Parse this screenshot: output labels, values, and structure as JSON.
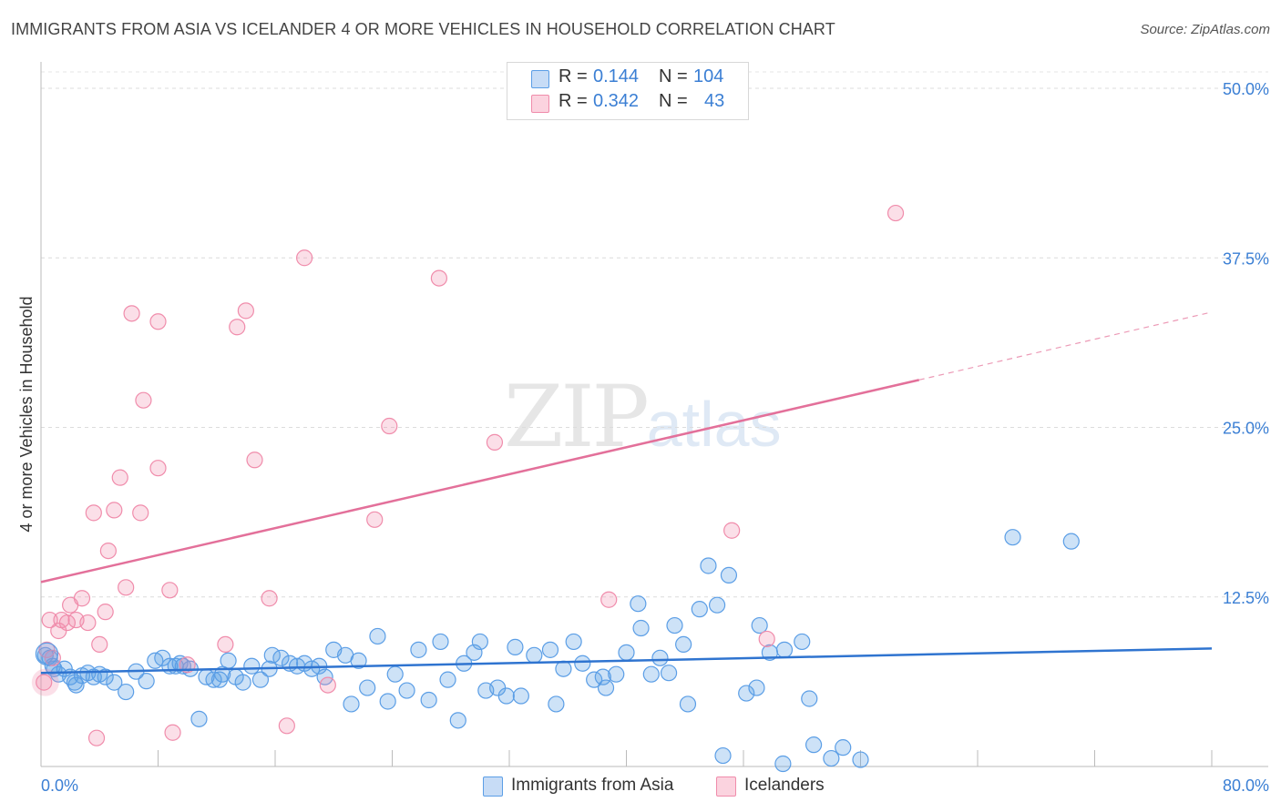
{
  "title": "IMMIGRANTS FROM ASIA VS ICELANDER 4 OR MORE VEHICLES IN HOUSEHOLD CORRELATION CHART",
  "source": "Source: ZipAtlas.com",
  "watermark": {
    "zip": "ZIP",
    "atlas": "atlas"
  },
  "legend": {
    "r_label": "R =",
    "n_label": "N =",
    "rows": [
      {
        "name": "Immigrants from Asia",
        "r": "0.144",
        "n": "104",
        "color": "#5b9ee6"
      },
      {
        "name": "Icelanders",
        "r": "0.342",
        "n": "43",
        "color": "#f08cab"
      }
    ]
  },
  "chart_data": {
    "type": "scatter",
    "title": "IMMIGRANTS FROM ASIA VS ICELANDER 4 OR MORE VEHICLES IN HOUSEHOLD CORRELATION CHART",
    "xlabel": "",
    "ylabel": "4 or more Vehicles in Household",
    "xlim": [
      0,
      80
    ],
    "ylim": [
      0,
      52
    ],
    "x_tick_labels": [
      "0.0%",
      "80.0%"
    ],
    "y_ticks": [
      12.5,
      25.0,
      37.5,
      50.0
    ],
    "y_tick_labels": [
      "12.5%",
      "25.0%",
      "37.5%",
      "50.0%"
    ],
    "series": [
      {
        "name": "Immigrants from Asia",
        "color": "#5b9ee6",
        "trend": {
          "x0": 0,
          "y0": 6.9,
          "x1": 80,
          "y1": 8.7
        },
        "points": [
          [
            0.3,
            8.2
          ],
          [
            0.6,
            8.0
          ],
          [
            0.9,
            7.2
          ],
          [
            1.2,
            6.8
          ],
          [
            1.6,
            7.2
          ],
          [
            2.0,
            6.6
          ],
          [
            2.3,
            6.2
          ],
          [
            2.8,
            6.7
          ],
          [
            3.2,
            6.9
          ],
          [
            3.6,
            6.6
          ],
          [
            4.0,
            6.8
          ],
          [
            4.4,
            6.6
          ],
          [
            5.0,
            6.2
          ],
          [
            5.8,
            5.5
          ],
          [
            6.5,
            7.0
          ],
          [
            7.2,
            6.3
          ],
          [
            7.8,
            7.8
          ],
          [
            8.3,
            8.0
          ],
          [
            8.8,
            7.4
          ],
          [
            9.2,
            7.4
          ],
          [
            9.7,
            7.4
          ],
          [
            10.2,
            7.2
          ],
          [
            10.8,
            3.5
          ],
          [
            11.3,
            6.6
          ],
          [
            11.8,
            6.4
          ],
          [
            12.4,
            6.8
          ],
          [
            12.8,
            7.8
          ],
          [
            13.3,
            6.6
          ],
          [
            13.8,
            6.2
          ],
          [
            14.4,
            7.4
          ],
          [
            15.0,
            6.4
          ],
          [
            15.6,
            7.2
          ],
          [
            15.8,
            8.2
          ],
          [
            16.4,
            8.0
          ],
          [
            17.0,
            7.6
          ],
          [
            17.5,
            7.4
          ],
          [
            18.0,
            7.6
          ],
          [
            18.5,
            7.2
          ],
          [
            19.0,
            7.4
          ],
          [
            19.4,
            6.6
          ],
          [
            20.0,
            8.6
          ],
          [
            20.8,
            8.2
          ],
          [
            21.2,
            4.6
          ],
          [
            21.7,
            7.8
          ],
          [
            22.3,
            5.8
          ],
          [
            23.0,
            9.6
          ],
          [
            23.7,
            4.8
          ],
          [
            24.2,
            6.8
          ],
          [
            25.0,
            5.6
          ],
          [
            25.8,
            8.6
          ],
          [
            26.5,
            4.9
          ],
          [
            27.3,
            9.2
          ],
          [
            27.8,
            6.4
          ],
          [
            28.5,
            3.4
          ],
          [
            28.9,
            7.6
          ],
          [
            29.6,
            8.4
          ],
          [
            30.0,
            9.2
          ],
          [
            30.4,
            5.6
          ],
          [
            31.2,
            5.8
          ],
          [
            31.8,
            5.2
          ],
          [
            32.4,
            8.8
          ],
          [
            32.8,
            5.2
          ],
          [
            33.7,
            8.2
          ],
          [
            34.8,
            8.6
          ],
          [
            35.2,
            4.6
          ],
          [
            35.7,
            7.2
          ],
          [
            36.4,
            9.2
          ],
          [
            37.0,
            7.6
          ],
          [
            37.8,
            6.4
          ],
          [
            38.4,
            6.6
          ],
          [
            38.6,
            5.8
          ],
          [
            39.3,
            6.8
          ],
          [
            40.0,
            8.4
          ],
          [
            40.8,
            12.0
          ],
          [
            41.0,
            10.2
          ],
          [
            41.7,
            6.8
          ],
          [
            42.3,
            8.0
          ],
          [
            42.9,
            6.9
          ],
          [
            43.3,
            10.4
          ],
          [
            43.9,
            9.0
          ],
          [
            44.2,
            4.6
          ],
          [
            45.0,
            11.6
          ],
          [
            45.6,
            14.8
          ],
          [
            46.2,
            11.9
          ],
          [
            46.6,
            0.8
          ],
          [
            47.0,
            14.1
          ],
          [
            48.2,
            5.4
          ],
          [
            48.9,
            5.8
          ],
          [
            49.1,
            10.4
          ],
          [
            49.8,
            8.4
          ],
          [
            50.7,
            0.2
          ],
          [
            50.8,
            8.6
          ],
          [
            52.0,
            9.2
          ],
          [
            52.5,
            5.0
          ],
          [
            52.8,
            1.6
          ],
          [
            54.0,
            0.6
          ],
          [
            54.8,
            1.4
          ],
          [
            56.0,
            0.5
          ],
          [
            66.4,
            16.9
          ],
          [
            70.4,
            16.6
          ],
          [
            0.8,
            7.4
          ],
          [
            2.4,
            6.0
          ],
          [
            9.5,
            7.6
          ],
          [
            12.2,
            6.4
          ]
        ]
      },
      {
        "name": "Icelanders",
        "color": "#f08cab",
        "trend": {
          "x0": 0,
          "y0": 13.6,
          "x1": 60,
          "y1": 28.5,
          "dash_x1": 80,
          "dash_y1": 33.5
        },
        "points": [
          [
            0.2,
            6.2
          ],
          [
            0.4,
            8.6
          ],
          [
            0.6,
            10.8
          ],
          [
            0.8,
            8.0
          ],
          [
            1.2,
            10.0
          ],
          [
            1.4,
            10.8
          ],
          [
            1.8,
            10.6
          ],
          [
            2.0,
            11.9
          ],
          [
            2.4,
            10.8
          ],
          [
            2.8,
            12.4
          ],
          [
            3.2,
            10.6
          ],
          [
            3.6,
            18.7
          ],
          [
            3.8,
            2.1
          ],
          [
            4.0,
            9.0
          ],
          [
            4.4,
            11.4
          ],
          [
            4.6,
            15.9
          ],
          [
            5.0,
            18.9
          ],
          [
            5.4,
            21.3
          ],
          [
            5.8,
            13.2
          ],
          [
            6.2,
            33.4
          ],
          [
            6.8,
            18.7
          ],
          [
            7.0,
            27.0
          ],
          [
            8.0,
            32.8
          ],
          [
            8.0,
            22.0
          ],
          [
            8.8,
            13.0
          ],
          [
            9.0,
            2.5
          ],
          [
            10.0,
            7.5
          ],
          [
            12.6,
            9.0
          ],
          [
            13.4,
            32.4
          ],
          [
            14.0,
            33.6
          ],
          [
            14.6,
            22.6
          ],
          [
            15.6,
            12.4
          ],
          [
            16.8,
            3.0
          ],
          [
            18.0,
            37.5
          ],
          [
            19.6,
            6.0
          ],
          [
            22.8,
            18.2
          ],
          [
            23.8,
            25.1
          ],
          [
            27.2,
            36.0
          ],
          [
            31.0,
            23.9
          ],
          [
            38.8,
            12.3
          ],
          [
            47.2,
            17.4
          ],
          [
            49.6,
            9.4
          ],
          [
            58.4,
            40.8
          ]
        ]
      }
    ]
  }
}
